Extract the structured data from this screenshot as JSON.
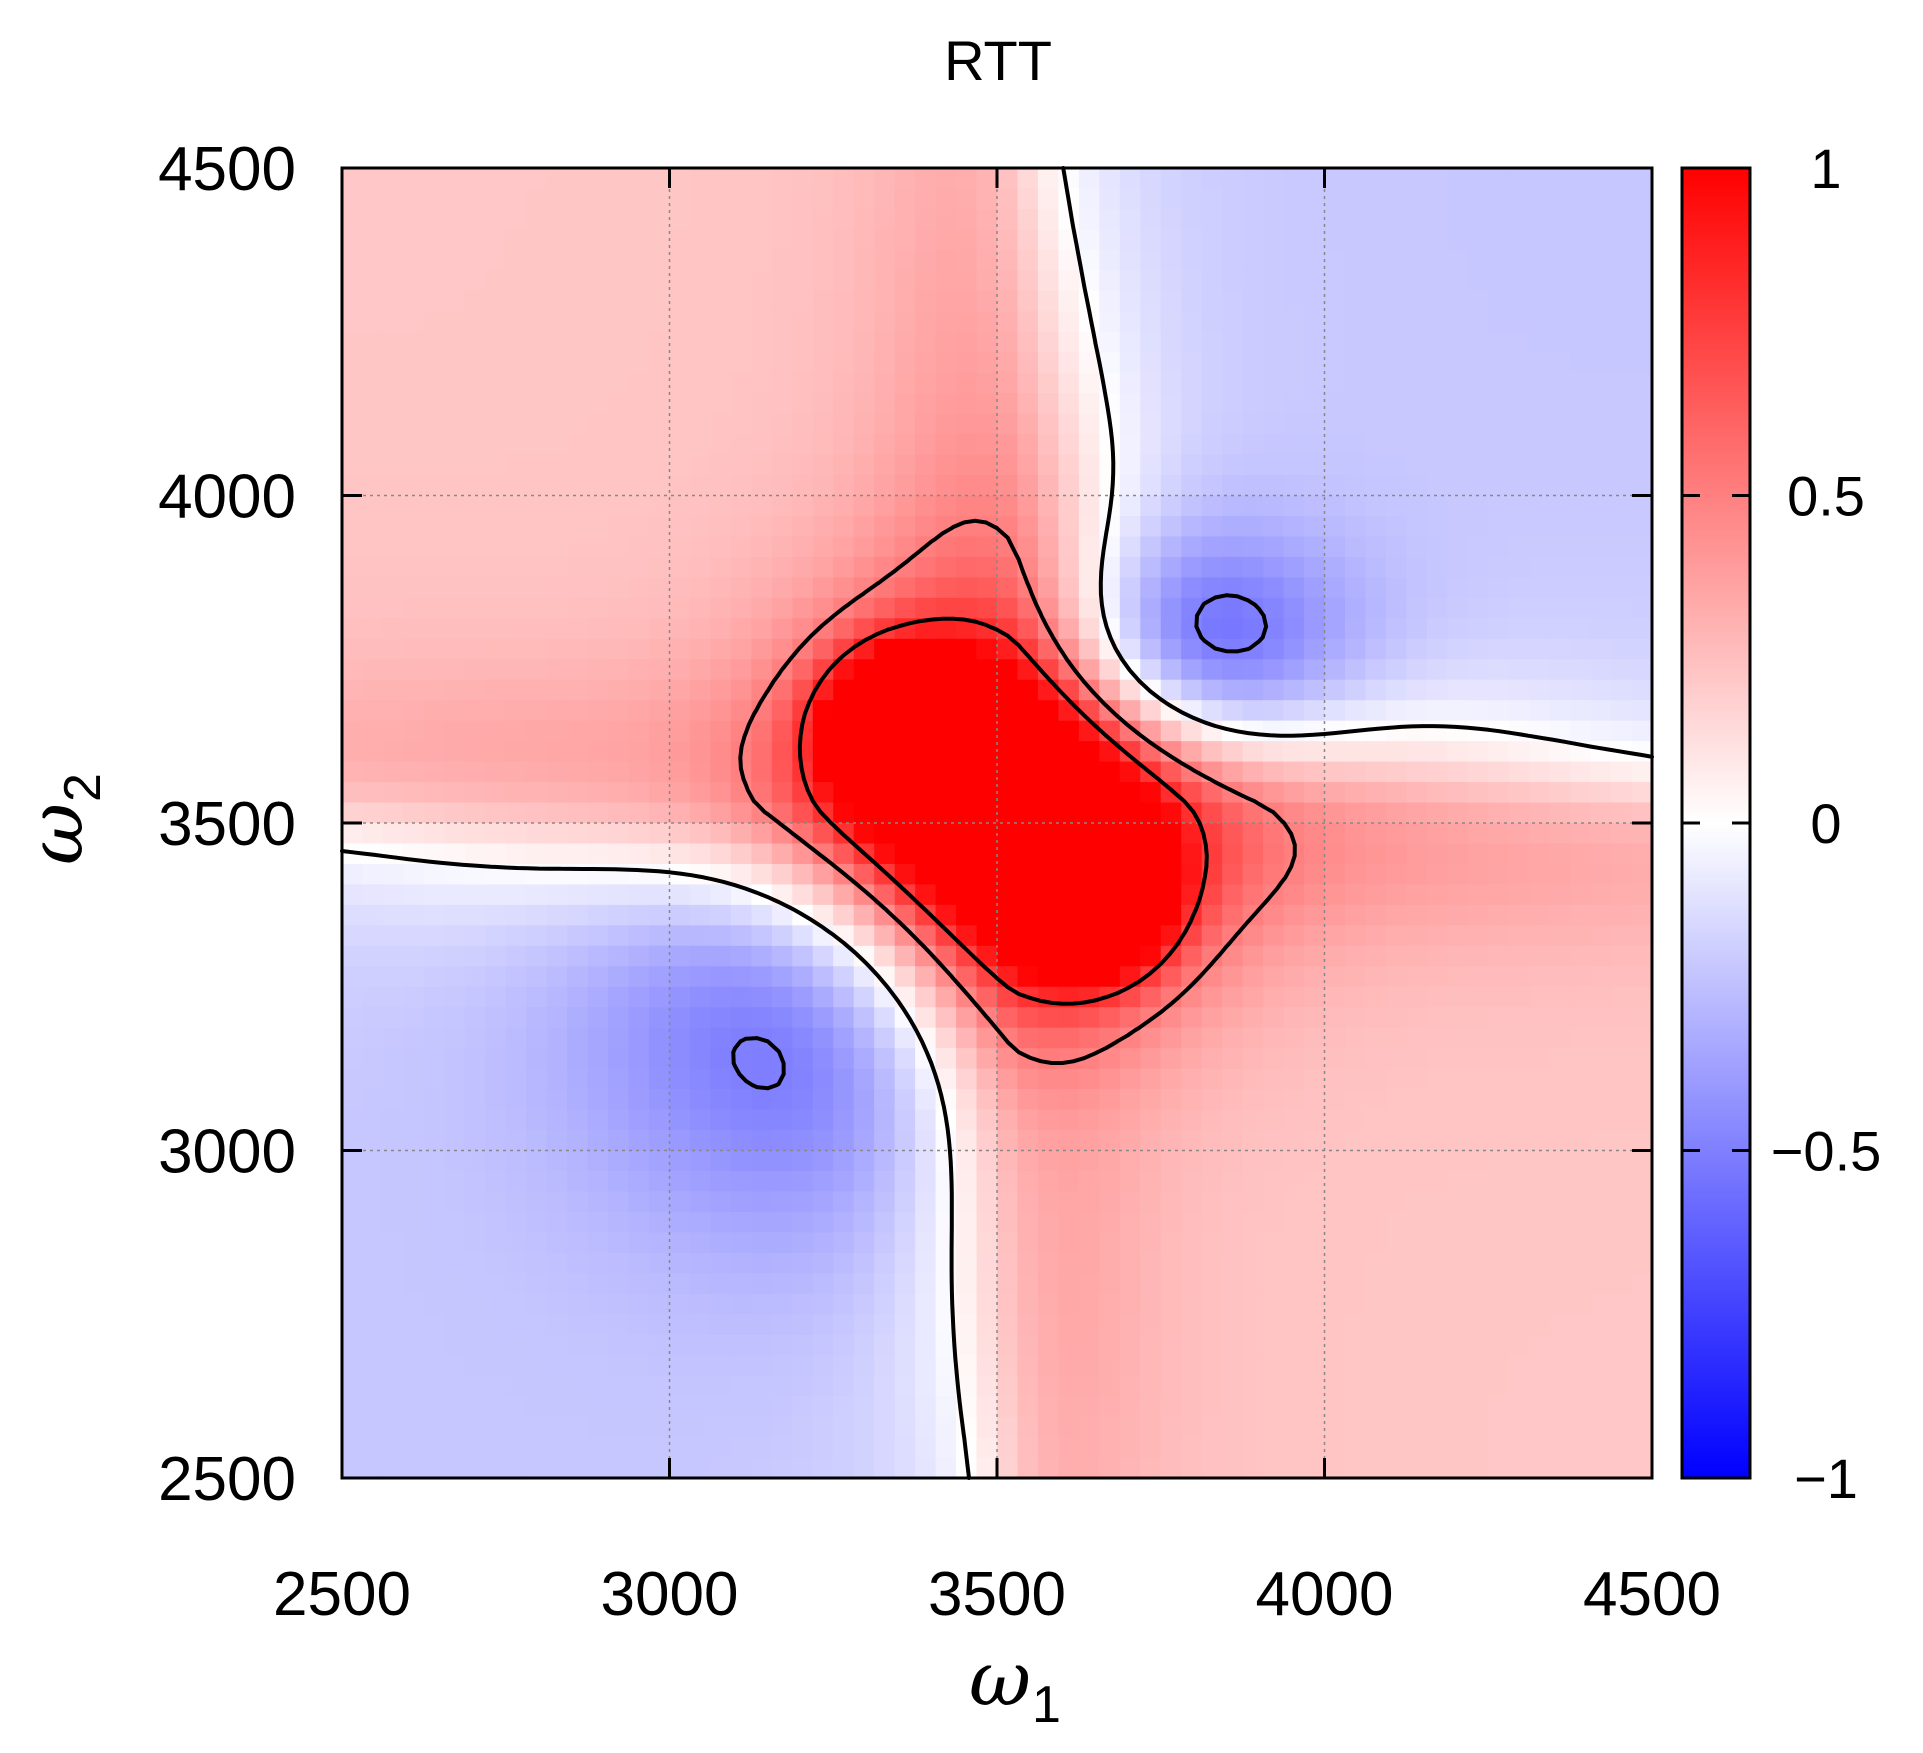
{
  "chart_data": {
    "type": "heatmap",
    "title": "RTT",
    "xlabel": "ω",
    "xlabel_sub": "1",
    "ylabel": "ω",
    "ylabel_sub": "2",
    "xlim": [
      2500,
      4500
    ],
    "ylim": [
      2500,
      4500
    ],
    "x_ticks": [
      "2500",
      "3000",
      "3500",
      "4000",
      "4500"
    ],
    "y_ticks": [
      "2500",
      "3000",
      "3500",
      "4000",
      "4500"
    ],
    "colorbar": {
      "range": [
        -1,
        1
      ],
      "ticks": [
        "1",
        "0.5",
        "0",
        "−0.5",
        "−1"
      ],
      "colors": {
        "min": "#0000ff",
        "mid": "#ffffff",
        "max": "#ff0000"
      }
    },
    "grid": true,
    "contour_levels": [
      -0.5,
      0,
      0.5,
      0.8
    ],
    "peaks": [
      {
        "x": 3350,
        "y": 3650,
        "value": 1.0
      },
      {
        "x": 3650,
        "y": 3380,
        "value": 1.0
      },
      {
        "x": 3780,
        "y": 3750,
        "value": -0.5
      },
      {
        "x": 3220,
        "y": 3220,
        "value": -0.35
      }
    ]
  }
}
